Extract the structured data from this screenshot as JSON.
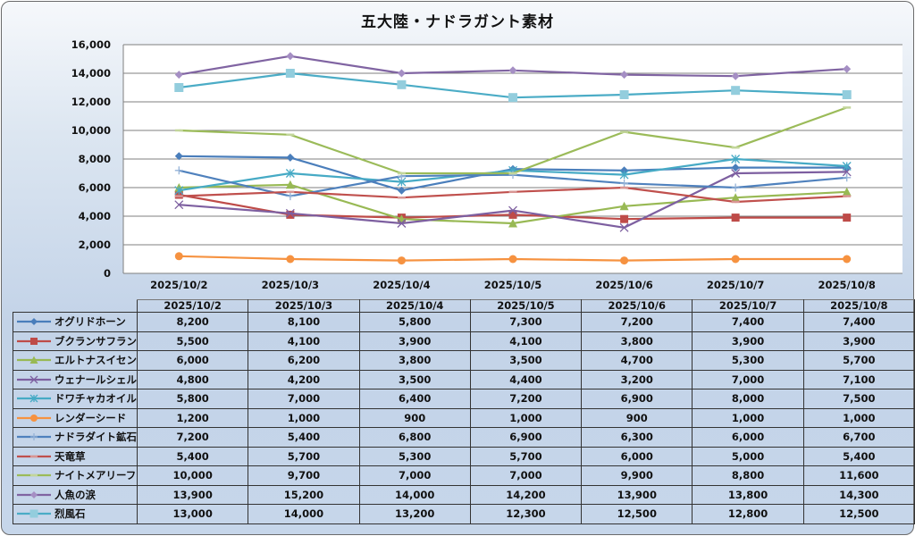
{
  "chart_data": {
    "type": "line",
    "title": "五大陸・ナドラガント素材",
    "categories": [
      "2025/10/2",
      "2025/10/3",
      "2025/10/4",
      "2025/10/5",
      "2025/10/6",
      "2025/10/7",
      "2025/10/8"
    ],
    "ylim": [
      0,
      16000
    ],
    "yticks": [
      0,
      2000,
      4000,
      6000,
      8000,
      10000,
      12000,
      14000,
      16000
    ],
    "ytick_labels": [
      "0",
      "2,000",
      "4,000",
      "6,000",
      "8,000",
      "10,000",
      "12,000",
      "14,000",
      "16,000"
    ],
    "grid": true,
    "legend": "data-table-bottom",
    "xlabel": "",
    "ylabel": "",
    "series": [
      {
        "name": "オグリドホーン",
        "color": "#4a7ebb",
        "marker": "diamond",
        "values": [
          8200,
          8100,
          5800,
          7300,
          7200,
          7400,
          7400
        ],
        "labels": [
          "8,200",
          "8,100",
          "5,800",
          "7,300",
          "7,200",
          "7,400",
          "7,400"
        ]
      },
      {
        "name": "ブクランサフラン",
        "color": "#be4b48",
        "marker": "square",
        "values": [
          5500,
          4100,
          3900,
          4100,
          3800,
          3900,
          3900
        ],
        "labels": [
          "5,500",
          "4,100",
          "3,900",
          "4,100",
          "3,800",
          "3,900",
          "3,900"
        ]
      },
      {
        "name": "エルトナスイセン",
        "color": "#98b954",
        "marker": "triangle",
        "values": [
          6000,
          6200,
          3800,
          3500,
          4700,
          5300,
          5700
        ],
        "labels": [
          "6,000",
          "6,200",
          "3,800",
          "3,500",
          "4,700",
          "5,300",
          "5,700"
        ]
      },
      {
        "name": "ウェナールシェル",
        "color": "#7d5fa0",
        "marker": "x",
        "values": [
          4800,
          4200,
          3500,
          4400,
          3200,
          7000,
          7100
        ],
        "labels": [
          "4,800",
          "4,200",
          "3,500",
          "4,400",
          "3,200",
          "7,000",
          "7,100"
        ]
      },
      {
        "name": "ドワチャカオイル",
        "color": "#46aac5",
        "marker": "star",
        "values": [
          5800,
          7000,
          6400,
          7200,
          6900,
          8000,
          7500
        ],
        "labels": [
          "5,800",
          "7,000",
          "6,400",
          "7,200",
          "6,900",
          "8,000",
          "7,500"
        ]
      },
      {
        "name": "レンダーシード",
        "color": "#f69240",
        "marker": "circle",
        "values": [
          1200,
          1000,
          900,
          1000,
          900,
          1000,
          1000
        ],
        "labels": [
          "1,200",
          "1,000",
          "900",
          "1,000",
          "900",
          "1,000",
          "1,000"
        ]
      },
      {
        "name": "ナドラダイト鉱石",
        "color": "#4f81bd",
        "marker": "plus",
        "values": [
          7200,
          5400,
          6800,
          6900,
          6300,
          6000,
          6700
        ],
        "labels": [
          "7,200",
          "5,400",
          "6,800",
          "6,900",
          "6,300",
          "6,000",
          "6,700"
        ]
      },
      {
        "name": "天竜草",
        "color": "#c0504d",
        "marker": "dash",
        "values": [
          5400,
          5700,
          5300,
          5700,
          6000,
          5000,
          5400
        ],
        "labels": [
          "5,400",
          "5,700",
          "5,300",
          "5,700",
          "6,000",
          "5,000",
          "5,400"
        ]
      },
      {
        "name": "ナイトメアリーフ",
        "color": "#9bbb59",
        "marker": "dash",
        "values": [
          10000,
          9700,
          7000,
          7000,
          9900,
          8800,
          11600
        ],
        "labels": [
          "10,000",
          "9,700",
          "7,000",
          "7,000",
          "9,900",
          "8,800",
          "11,600"
        ]
      },
      {
        "name": "人魚の涙",
        "color": "#8064a2",
        "marker": "diamond-light",
        "values": [
          13900,
          15200,
          14000,
          14200,
          13900,
          13800,
          14300
        ],
        "labels": [
          "13,900",
          "15,200",
          "14,000",
          "14,200",
          "13,900",
          "13,800",
          "14,300"
        ]
      },
      {
        "name": "烈風石",
        "color": "#4bacc6",
        "marker": "square-light",
        "values": [
          13000,
          14000,
          13200,
          12300,
          12500,
          12800,
          12500
        ],
        "labels": [
          "13,000",
          "14,000",
          "13,200",
          "12,300",
          "12,500",
          "12,800",
          "12,500"
        ]
      }
    ]
  }
}
